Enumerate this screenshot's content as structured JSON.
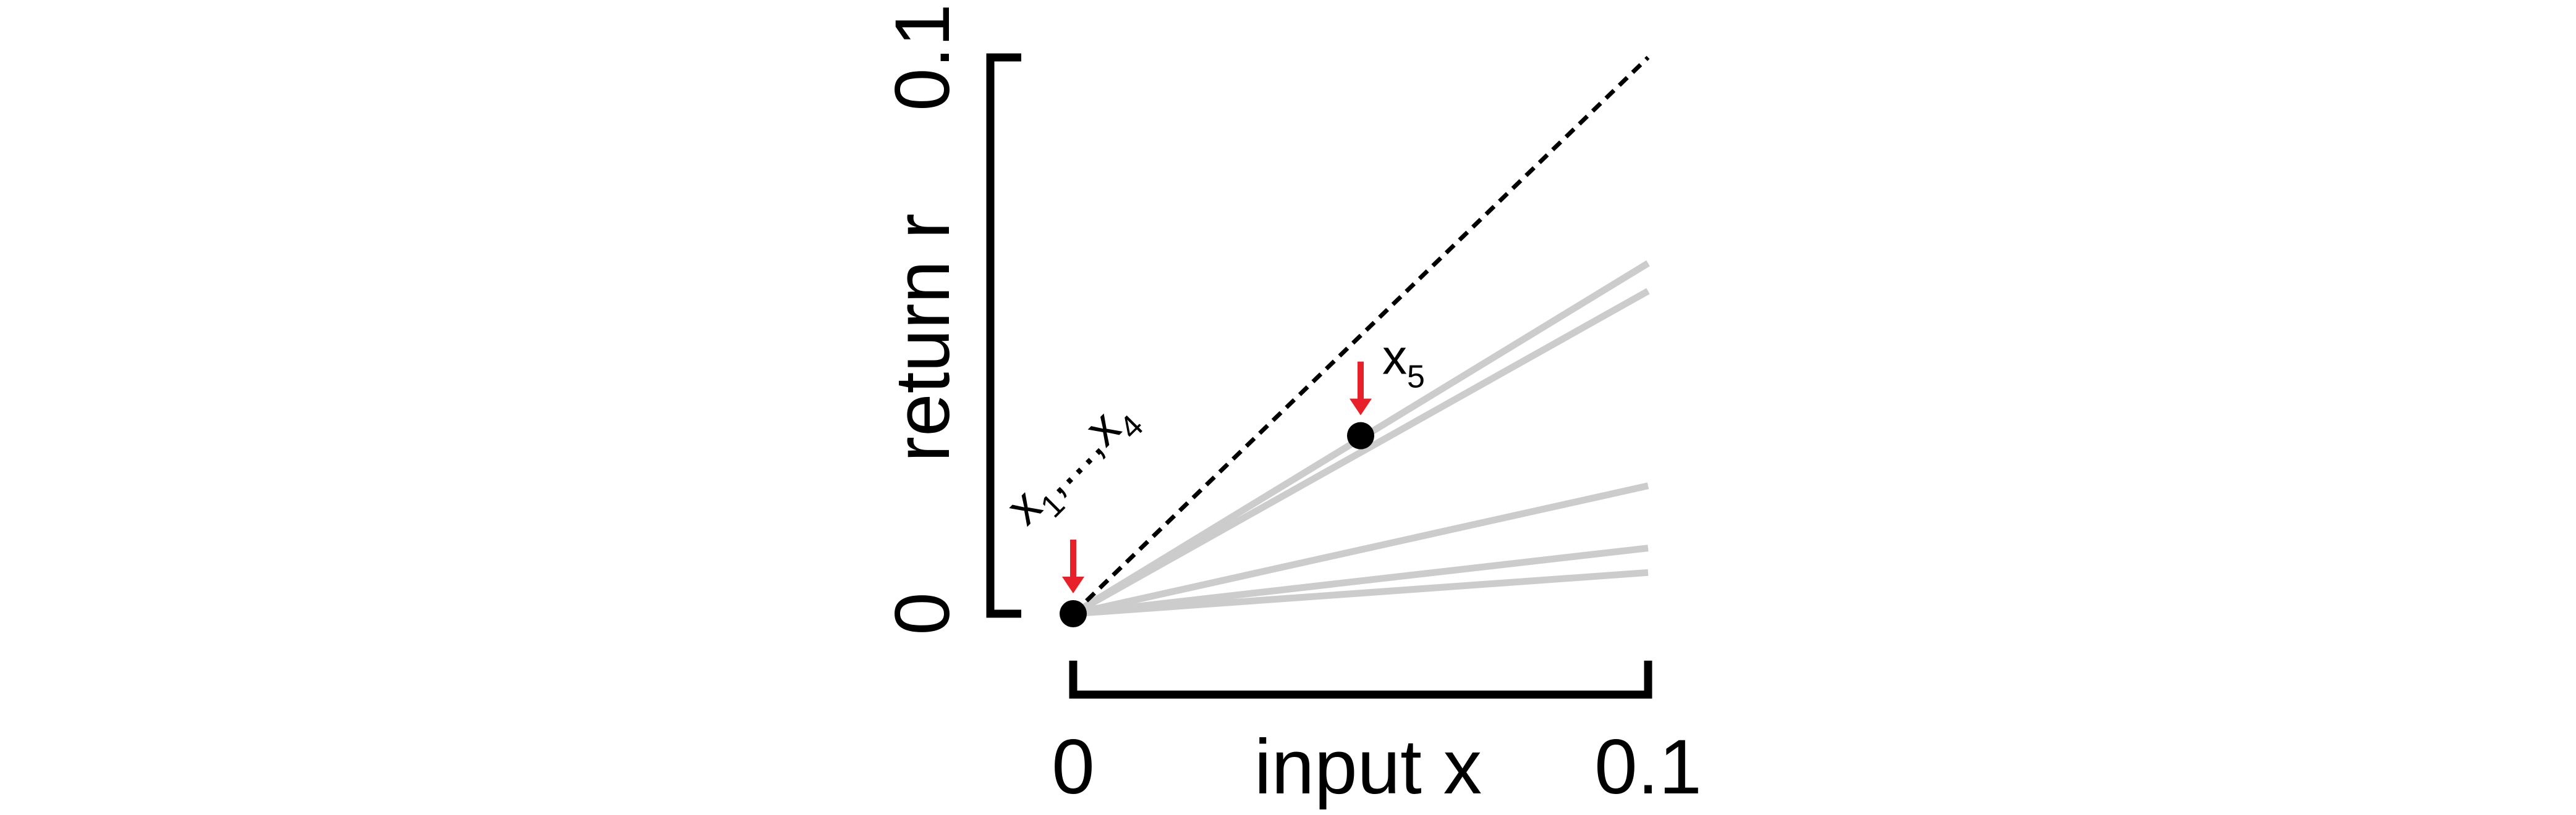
{
  "chart_data": {
    "type": "line",
    "x_label": "input x",
    "y_label": "return r",
    "xlim": [
      0,
      0.1
    ],
    "ylim": [
      0,
      0.1
    ],
    "xticks": [
      0,
      0.1
    ],
    "yticks": [
      0,
      0.1
    ],
    "x": [
      0,
      0.1
    ],
    "series": [
      {
        "color": "#000000",
        "dashed": true,
        "values": [
          0,
          0.1
        ]
      },
      {
        "color": "#cccccc",
        "values": [
          0,
          0.063
        ]
      },
      {
        "color": "#cccccc",
        "values": [
          0,
          0.058
        ]
      },
      {
        "color": "#cccccc",
        "values": [
          0,
          0.023
        ]
      },
      {
        "color": "#cccccc",
        "values": [
          0,
          0.0118
        ]
      },
      {
        "color": "#cccccc",
        "values": [
          0,
          0.0074
        ]
      }
    ],
    "points": {
      "color": "#000000",
      "arrow_color": "#e8202a",
      "x": [
        0,
        0.05
      ],
      "y": [
        0,
        0.032
      ],
      "labels": [
        [
          {
            "text": "x"
          },
          {
            "text": "1",
            "sub": true
          },
          {
            "text": ",...,"
          },
          {
            "text": "x"
          },
          {
            "text": "4",
            "sub": true
          }
        ],
        [
          {
            "text": "x"
          },
          {
            "text": "5",
            "sub": true
          }
        ]
      ]
    }
  }
}
